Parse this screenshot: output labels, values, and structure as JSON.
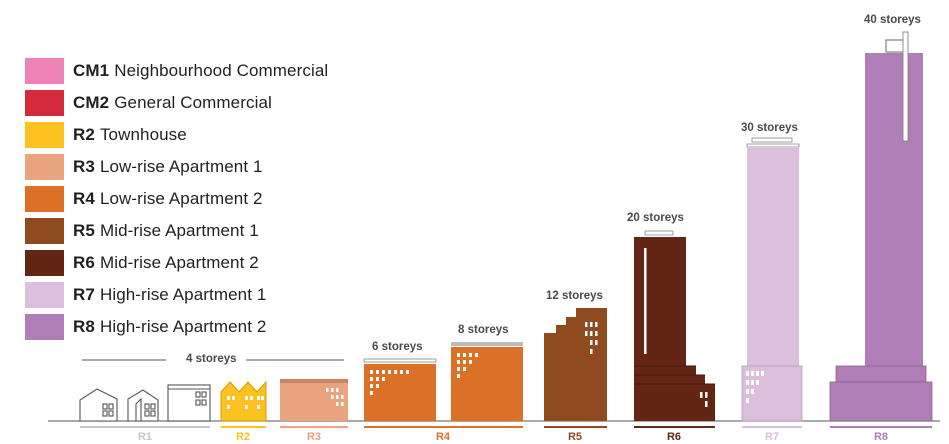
{
  "legend": [
    {
      "code": "CM1",
      "name": "Neighbourhood Commercial",
      "color": "#ee83b6"
    },
    {
      "code": "CM2",
      "name": "General Commercial",
      "color": "#d42a3b"
    },
    {
      "code": "R2",
      "name": "Townhouse",
      "color": "#fdc21f"
    },
    {
      "code": "R3",
      "name": "Low-rise Apartment 1",
      "color": "#e9a47f"
    },
    {
      "code": "R4",
      "name": "Low-rise Apartment 2",
      "color": "#dc7027"
    },
    {
      "code": "R5",
      "name": "Mid-rise Apartment 1",
      "color": "#8f4a1f"
    },
    {
      "code": "R6",
      "name": "Mid-rise Apartment 2",
      "color": "#632514"
    },
    {
      "code": "R7",
      "name": "High-rise Apartment 1",
      "color": "#dbbfdc"
    },
    {
      "code": "R8",
      "name": "High-rise Apartment 2",
      "color": "#b07eb6"
    }
  ],
  "height_labels": {
    "group_4": "4 storeys",
    "r4a": "6 storeys",
    "r4b": "8 storeys",
    "r5": "12 storeys",
    "r6": "20 storeys",
    "r7": "30 storeys",
    "r8": "40 storeys"
  },
  "zones": [
    {
      "code": "R1",
      "color": "#c8c8c8"
    },
    {
      "code": "R2",
      "color": "#fdc21f"
    },
    {
      "code": "R3",
      "color": "#e9a47f"
    },
    {
      "code": "R4",
      "color": "#dc7027"
    },
    {
      "code": "R5",
      "color": "#8f4a1f"
    },
    {
      "code": "R6",
      "color": "#632514"
    },
    {
      "code": "R7",
      "color": "#dbbfdc"
    },
    {
      "code": "R8",
      "color": "#b07eb6"
    }
  ]
}
